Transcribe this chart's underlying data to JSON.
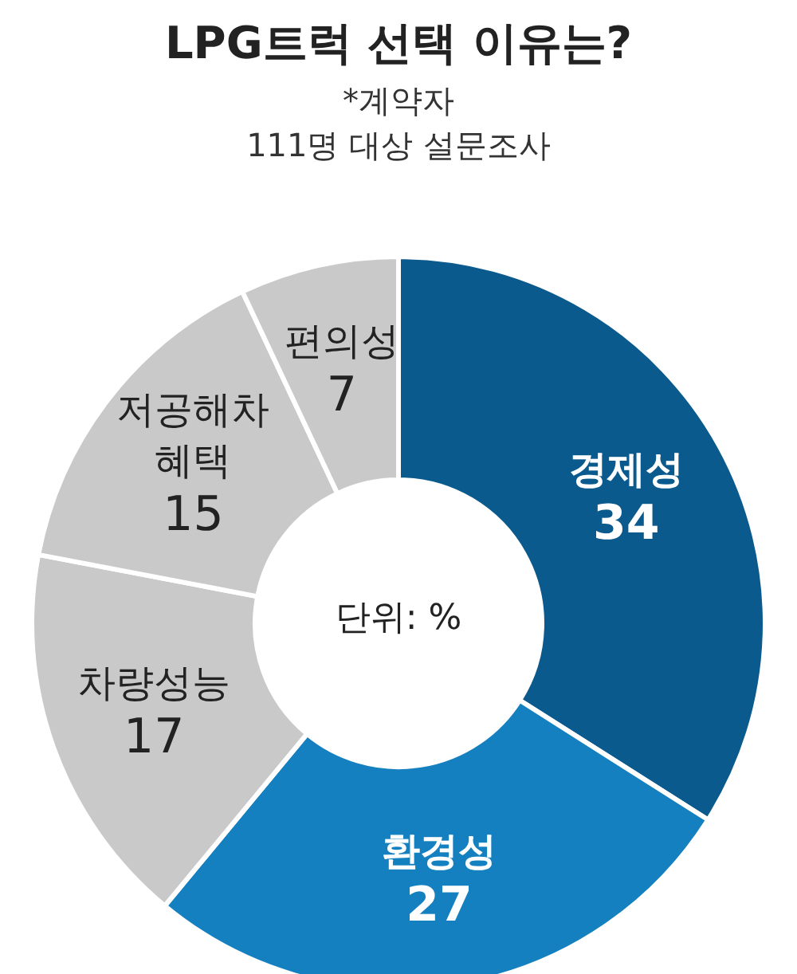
{
  "chart_data": {
    "type": "donut",
    "title": "LPG트럭 선택 이유는?",
    "subtitle": "*계약자\n111명 대상 설문조사",
    "categories": [
      "경제성",
      "환경성",
      "차량성능",
      "저공해차 혜택",
      "편의성"
    ],
    "values": [
      34,
      27,
      17,
      15,
      7
    ],
    "colors": [
      "#0b5a8e",
      "#1580bf",
      "#c9c9c9",
      "#c9c9c9",
      "#c9c9c9"
    ],
    "data_labels": true,
    "legend": false,
    "annotations": [
      "단위: %"
    ]
  }
}
